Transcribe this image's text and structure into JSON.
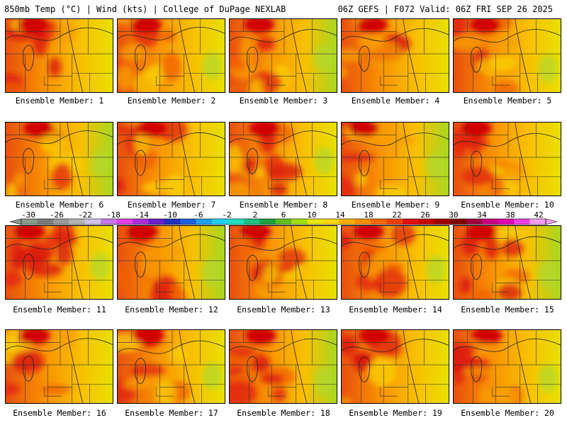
{
  "header": {
    "left": "850mb Temp (°C) | Wind (kts) | College of DuPage NEXLAB",
    "right": "06Z GEFS | F072 Valid: 06Z FRI SEP 26 2025"
  },
  "panels": [
    {
      "label": "Ensemble Member: 1"
    },
    {
      "label": "Ensemble Member: 2"
    },
    {
      "label": "Ensemble Member: 3"
    },
    {
      "label": "Ensemble Member: 4"
    },
    {
      "label": "Ensemble Member: 5"
    },
    {
      "label": "Ensemble Member: 6"
    },
    {
      "label": "Ensemble Member: 7"
    },
    {
      "label": "Ensemble Member: 8"
    },
    {
      "label": "Ensemble Member: 9"
    },
    {
      "label": "Ensemble Member: 10"
    },
    {
      "label": "Ensemble Member: 11"
    },
    {
      "label": "Ensemble Member: 12"
    },
    {
      "label": "Ensemble Member: 13"
    },
    {
      "label": "Ensemble Member: 14"
    },
    {
      "label": "Ensemble Member: 15"
    },
    {
      "label": "Ensemble Member: 16"
    },
    {
      "label": "Ensemble Member: 17"
    },
    {
      "label": "Ensemble Member: 18"
    },
    {
      "label": "Ensemble Member: 19"
    },
    {
      "label": "Ensemble Member: 20"
    }
  ],
  "colorbar": {
    "tick_labels": [
      "-30",
      "-26",
      "-22",
      "-18",
      "-14",
      "-10",
      "-6",
      "-2",
      "2",
      "6",
      "10",
      "14",
      "18",
      "22",
      "26",
      "30",
      "34",
      "38",
      "42"
    ],
    "colors": [
      "#8a9a8a",
      "#7a7a7a",
      "#9a9a9a",
      "#b4b4b4",
      "#cfc4e8",
      "#c878e8",
      "#e040e8",
      "#a830d8",
      "#6a20c8",
      "#2030c0",
      "#2060e0",
      "#20a0f0",
      "#20d0f0",
      "#20e0c0",
      "#20c080",
      "#20a040",
      "#60c020",
      "#a0e010",
      "#e8e800",
      "#f8d800",
      "#f8b000",
      "#f89000",
      "#f86800",
      "#f04000",
      "#e01010",
      "#c80000",
      "#a00000",
      "#800000",
      "#a00040",
      "#c80080",
      "#e000b0",
      "#f040e0",
      "#f8a0f0"
    ]
  }
}
